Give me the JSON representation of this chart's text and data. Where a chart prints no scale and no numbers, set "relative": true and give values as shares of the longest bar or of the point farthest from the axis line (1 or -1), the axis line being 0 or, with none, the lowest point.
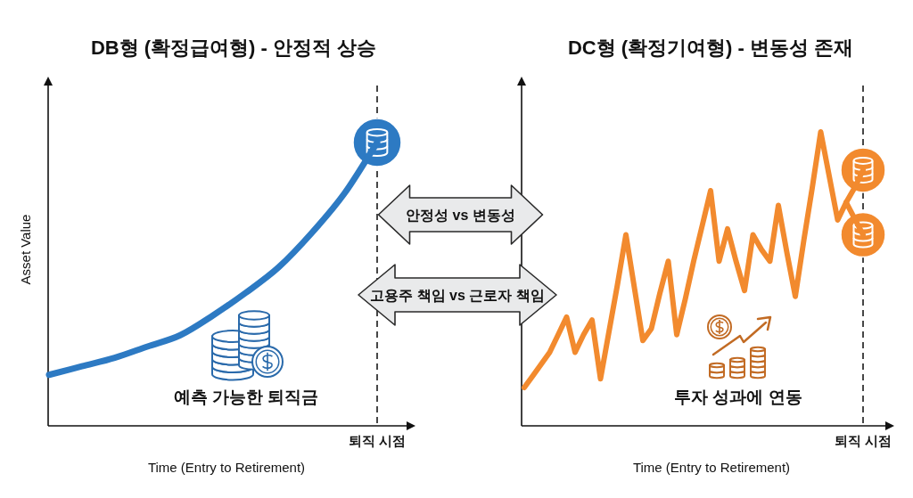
{
  "chart_data": [
    {
      "type": "line",
      "title": "DB형 (확정급여형) - 안정적 상승",
      "xlabel": "Time (Entry to Retirement)",
      "ylabel": "Asset Value",
      "relative": true,
      "categories": [
        null,
        null,
        null,
        null,
        null,
        null,
        null,
        null,
        null,
        null,
        null
      ],
      "series": [
        {
          "color": "#2d7ac3",
          "values": [
            0.18,
            0.21,
            0.24,
            0.28,
            0.32,
            0.39,
            0.47,
            0.56,
            0.68,
            0.82,
            1
          ]
        }
      ],
      "annotations": [
        "예측 가능한 퇴직금",
        "퇴직 시점"
      ]
    },
    {
      "type": "line",
      "title": "DC형 (확정기여형) - 변동성 존재",
      "xlabel": "Time (Entry to Retirement)",
      "relative": true,
      "categories": [
        null,
        null,
        null,
        null,
        null,
        null,
        null,
        null,
        null,
        null,
        null,
        null,
        null,
        null,
        null,
        null,
        null,
        null,
        null,
        null,
        null,
        null,
        null,
        null,
        null,
        null,
        null,
        null,
        null,
        null,
        null,
        null,
        null,
        null,
        null,
        null,
        null,
        null,
        null,
        null,
        null
      ],
      "series": [
        {
          "color": "#f28a2e",
          "values": [
            0.13,
            0.17,
            0.21,
            0.25,
            0.31,
            0.37,
            0.25,
            0.31,
            0.36,
            0.16,
            0.32,
            0.48,
            0.65,
            0.47,
            0.29,
            0.33,
            0.45,
            0.56,
            0.31,
            0.43,
            0.56,
            0.68,
            0.8,
            0.56,
            0.67,
            0.56,
            0.46,
            0.65,
            0.6,
            0.56,
            0.75,
            0.59,
            0.44,
            0.63,
            0.81,
            1,
            0.85,
            0.7,
            0.76,
            0.81,
            0.87
          ]
        },
        {
          "color": "#f28a2e",
          "values": [
            null,
            null,
            null,
            null,
            null,
            null,
            null,
            null,
            null,
            null,
            null,
            null,
            null,
            null,
            null,
            null,
            null,
            null,
            null,
            null,
            null,
            null,
            null,
            null,
            null,
            null,
            null,
            null,
            null,
            null,
            null,
            null,
            null,
            null,
            null,
            null,
            null,
            null,
            0.76,
            null,
            0.65
          ]
        }
      ],
      "annotations": [
        "투자 성과에 연동",
        "퇴직 시점"
      ]
    },
    {
      "type": "other",
      "annotations": [
        "안정성 vs 변동성",
        "고용주 책임 vs 근로자 책임"
      ]
    }
  ]
}
